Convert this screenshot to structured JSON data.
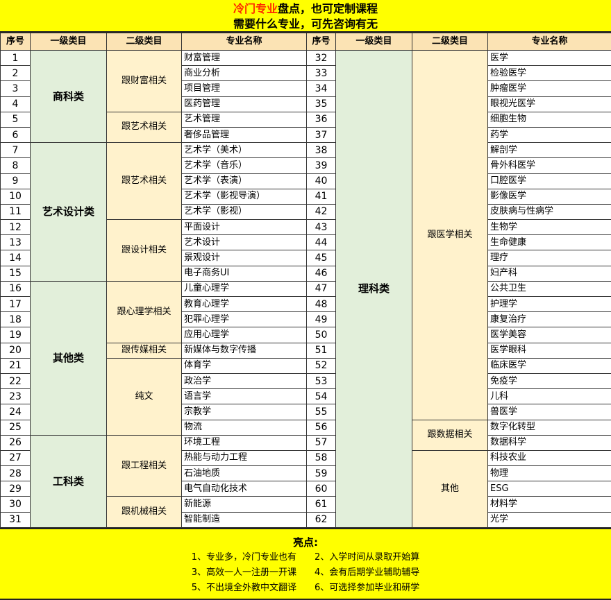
{
  "banner": {
    "title_red": "冷门专业",
    "title_rest": "盘点，也可定制课程",
    "subtitle": "需要什么专业，可先咨询有无"
  },
  "headers": [
    "序号",
    "一级类目",
    "二级类目",
    "专业名称",
    "序号",
    "一级类目",
    "二级类目",
    "专业名称"
  ],
  "left": {
    "cat1": [
      {
        "label": "商科类",
        "span": 6
      },
      {
        "label": "艺术设计类",
        "span": 9
      },
      {
        "label": "其他类",
        "span": 10
      },
      {
        "label": "工科类",
        "span": 6
      }
    ],
    "cat2": [
      {
        "label": "跟财富相关",
        "span": 4
      },
      {
        "label": "跟艺术相关",
        "span": 2
      },
      {
        "label": "跟艺术相关",
        "span": 5
      },
      {
        "label": "跟设计相关",
        "span": 4
      },
      {
        "label": "跟心理学相关",
        "span": 4
      },
      {
        "label": "跟传媒相关",
        "span": 1
      },
      {
        "label": "纯文",
        "span": 5
      },
      {
        "label": "跟工程相关",
        "span": 4
      },
      {
        "label": "跟机械相关",
        "span": 2
      }
    ],
    "seq": [
      "1",
      "2",
      "3",
      "4",
      "5",
      "6",
      "7",
      "8",
      "9",
      "10",
      "11",
      "12",
      "13",
      "14",
      "15",
      "16",
      "17",
      "18",
      "19",
      "20",
      "21",
      "22",
      "23",
      "24",
      "25",
      "26",
      "27",
      "28",
      "29",
      "30",
      "31"
    ],
    "names": [
      "财富管理",
      "商业分析",
      "项目管理",
      "医药管理",
      "艺术管理",
      "奢侈品管理",
      "艺术学（美术）",
      "艺术学（音乐）",
      "艺术学（表演）",
      "艺术学（影视导演）",
      "艺术学（影视）",
      "平面设计",
      "艺术设计",
      "景观设计",
      "电子商务UI",
      "儿童心理学",
      "教育心理学",
      "犯罪心理学",
      "应用心理学",
      "新媒体与数字传播",
      "体育学",
      "政治学",
      "语言学",
      "宗教学",
      "物流",
      "环境工程",
      "热能与动力工程",
      "石油地质",
      "电气自动化技术",
      "新能源",
      "智能制造"
    ]
  },
  "right": {
    "cat1": [
      {
        "label": "理科类",
        "span": 31
      }
    ],
    "cat2": [
      {
        "label": "跟医学相关",
        "span": 24
      },
      {
        "label": "跟数据相关",
        "span": 2
      },
      {
        "label": "其他",
        "span": 5
      }
    ],
    "seq": [
      "32",
      "33",
      "34",
      "35",
      "36",
      "37",
      "38",
      "39",
      "40",
      "41",
      "42",
      "43",
      "44",
      "45",
      "46",
      "47",
      "48",
      "49",
      "50",
      "51",
      "52",
      "53",
      "54",
      "55",
      "56",
      "57",
      "58",
      "59",
      "60",
      "61",
      "62"
    ],
    "names": [
      "医学",
      "检验医学",
      "肿瘤医学",
      "眼视光医学",
      "细胞生物",
      "药学",
      "解剖学",
      "骨外科医学",
      "口腔医学",
      "影像医学",
      "皮肤病与性病学",
      "生物学",
      "生命健康",
      "理疗",
      "妇产科",
      "公共卫生",
      "护理学",
      "康复治疗",
      "医学美容",
      "医学眼科",
      "临床医学",
      "免疫学",
      "儿科",
      "兽医学",
      "数字化转型",
      "数据科学",
      "科技农业",
      "物理",
      "ESG",
      "材料学",
      "光学"
    ]
  },
  "footer": {
    "title": "亮点:",
    "items": [
      "1、专业多，冷门专业也有",
      "2、入学时间从录取开始算",
      "3、高效一人一注册一开课",
      "4、会有后期学业辅助辅导",
      "5、不出境全外教中文翻译",
      "6、可选择参加毕业和研学"
    ]
  },
  "colors": {
    "banner": "#ffff00",
    "header": "#fbe3b4",
    "cat1": "#e2efda",
    "cat2": "#fff2cc",
    "title_red": "#ff2a00"
  }
}
